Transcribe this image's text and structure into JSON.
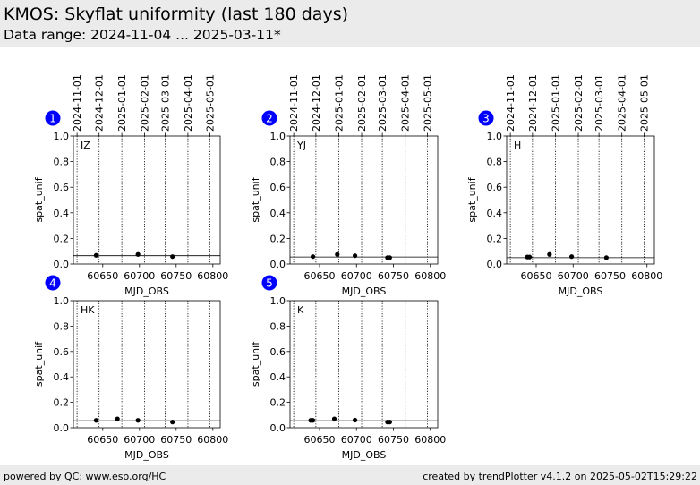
{
  "header": {
    "title": "KMOS: Skyflat uniformity (last 180 days)",
    "subtitle": "Data range: 2024-11-04 ... 2025-03-11*"
  },
  "footer": {
    "left": "powered by QC: www.eso.org/HC",
    "right": "created by trendPlotter v4.1.2 on 2025-05-02T15:29:22"
  },
  "colors": {
    "header_bg": "#ebebeb",
    "badge": "#0000ff",
    "points": "#000000"
  },
  "chart_data": [
    {
      "type": "scatter",
      "badge": "1",
      "panel_label": "IZ",
      "xlabel": "MJD_OBS",
      "ylabel": "spat_unif",
      "xlim": [
        60610,
        60810
      ],
      "ylim": [
        0,
        1
      ],
      "xticks": [
        60650,
        60700,
        60750,
        60800
      ],
      "yticks": [
        0.0,
        0.2,
        0.4,
        0.6,
        0.8,
        1.0
      ],
      "date_ticks": [
        "2024-11-01",
        "2024-12-01",
        "2025-01-01",
        "2025-02-01",
        "2025-03-01",
        "2025-04-01",
        "2025-05-01"
      ],
      "date_tick_mjd": [
        60615,
        60645,
        60676,
        60707,
        60735,
        60766,
        60796
      ],
      "reference_line": 0.065,
      "points": [
        {
          "x": 60641,
          "y": 0.068
        },
        {
          "x": 60698,
          "y": 0.075
        },
        {
          "x": 60745,
          "y": 0.058
        }
      ]
    },
    {
      "type": "scatter",
      "badge": "2",
      "panel_label": "YJ",
      "xlabel": "MJD_OBS",
      "ylabel": "spat_unif",
      "xlim": [
        60610,
        60810
      ],
      "ylim": [
        0,
        1
      ],
      "xticks": [
        60650,
        60700,
        60750,
        60800
      ],
      "yticks": [
        0.0,
        0.2,
        0.4,
        0.6,
        0.8,
        1.0
      ],
      "date_ticks": [
        "2024-11-01",
        "2024-12-01",
        "2025-01-01",
        "2025-02-01",
        "2025-03-01",
        "2025-04-01",
        "2025-05-01"
      ],
      "date_tick_mjd": [
        60615,
        60645,
        60676,
        60707,
        60735,
        60766,
        60796
      ],
      "reference_line": 0.055,
      "points": [
        {
          "x": 60641,
          "y": 0.058
        },
        {
          "x": 60674,
          "y": 0.075
        },
        {
          "x": 60698,
          "y": 0.065
        },
        {
          "x": 60742,
          "y": 0.05
        },
        {
          "x": 60745,
          "y": 0.05
        }
      ]
    },
    {
      "type": "scatter",
      "badge": "3",
      "panel_label": "H",
      "xlabel": "MJD_OBS",
      "ylabel": "spat_unif",
      "xlim": [
        60610,
        60810
      ],
      "ylim": [
        0,
        1
      ],
      "xticks": [
        60650,
        60700,
        60750,
        60800
      ],
      "yticks": [
        0.0,
        0.2,
        0.4,
        0.6,
        0.8,
        1.0
      ],
      "date_ticks": [
        "2024-11-01",
        "2024-12-01",
        "2025-01-01",
        "2025-02-01",
        "2025-03-01",
        "2025-04-01",
        "2025-05-01"
      ],
      "date_tick_mjd": [
        60615,
        60645,
        60676,
        60707,
        60735,
        60766,
        60796
      ],
      "reference_line": 0.05,
      "points": [
        {
          "x": 60638,
          "y": 0.055
        },
        {
          "x": 60641,
          "y": 0.055
        },
        {
          "x": 60668,
          "y": 0.075
        },
        {
          "x": 60698,
          "y": 0.058
        },
        {
          "x": 60745,
          "y": 0.05
        }
      ]
    },
    {
      "type": "scatter",
      "badge": "4",
      "panel_label": "HK",
      "xlabel": "MJD_OBS",
      "ylabel": "spat_unif",
      "xlim": [
        60610,
        60810
      ],
      "ylim": [
        0,
        1
      ],
      "xticks": [
        60650,
        60700,
        60750,
        60800
      ],
      "yticks": [
        0.0,
        0.2,
        0.4,
        0.6,
        0.8,
        1.0
      ],
      "date_ticks": [],
      "date_tick_mjd": [
        60615,
        60645,
        60676,
        60707,
        60735,
        60766,
        60796
      ],
      "reference_line": 0.055,
      "points": [
        {
          "x": 60641,
          "y": 0.058
        },
        {
          "x": 60670,
          "y": 0.07
        },
        {
          "x": 60698,
          "y": 0.058
        },
        {
          "x": 60745,
          "y": 0.045
        }
      ]
    },
    {
      "type": "scatter",
      "badge": "5",
      "panel_label": "K",
      "xlabel": "MJD_OBS",
      "ylabel": "spat_unif",
      "xlim": [
        60610,
        60810
      ],
      "ylim": [
        0,
        1
      ],
      "xticks": [
        60650,
        60700,
        60750,
        60800
      ],
      "yticks": [
        0.0,
        0.2,
        0.4,
        0.6,
        0.8,
        1.0
      ],
      "date_ticks": [],
      "date_tick_mjd": [
        60615,
        60645,
        60676,
        60707,
        60735,
        60766,
        60796
      ],
      "reference_line": 0.055,
      "points": [
        {
          "x": 60638,
          "y": 0.058
        },
        {
          "x": 60641,
          "y": 0.058
        },
        {
          "x": 60670,
          "y": 0.07
        },
        {
          "x": 60698,
          "y": 0.06
        },
        {
          "x": 60742,
          "y": 0.045
        },
        {
          "x": 60745,
          "y": 0.045
        }
      ]
    }
  ]
}
